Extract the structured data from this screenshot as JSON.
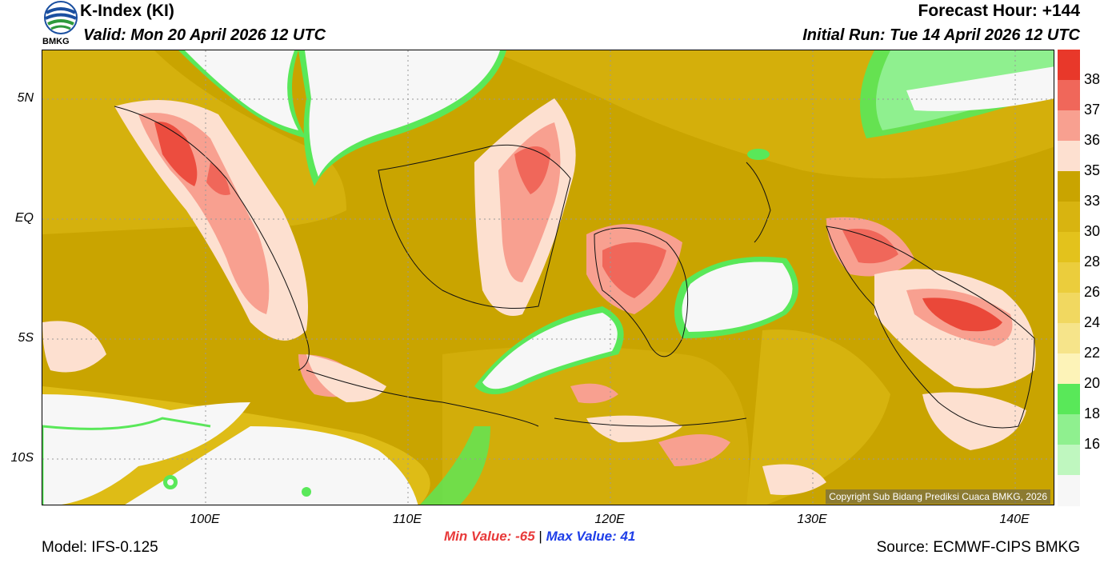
{
  "header": {
    "title": "K-Index (KI)",
    "valid": "Valid: Mon 20 April 2026 12 UTC",
    "forecast_hour": "Forecast Hour: +144",
    "initial_run": "Initial Run: Tue 14 April 2026 12 UTC"
  },
  "logo": {
    "text": "BMKG"
  },
  "axes": {
    "lat_ticks": [
      "5N",
      "EQ",
      "5S",
      "10S"
    ],
    "lon_ticks": [
      "100E",
      "110E",
      "120E",
      "130E",
      "140E"
    ]
  },
  "stats": {
    "min_label": "Min Value: -65",
    "separator": "|",
    "max_label": "Max Value:  41"
  },
  "footer": {
    "model": "Model: IFS-0.125",
    "source": "Source: ECMWF-CIPS BMKG",
    "copyright": "Copyright Sub Bidang Prediksi Cuaca BMKG, 2026"
  },
  "colorbar": {
    "labels": [
      "38",
      "37",
      "36",
      "35",
      "33",
      "30",
      "28",
      "26",
      "24",
      "22",
      "20",
      "18",
      "16"
    ],
    "colors": [
      "#e8382a",
      "#f0675a",
      "#f8a090",
      "#fde0d0",
      "#c9a400",
      "#d8b410",
      "#e3c21c",
      "#ebcd3c",
      "#f1d860",
      "#f6e48a",
      "#fdf3b8",
      "#59e859",
      "#8ff08f",
      "#bff7bf",
      "#f7f7f7"
    ]
  }
}
